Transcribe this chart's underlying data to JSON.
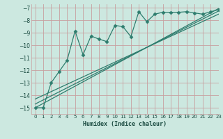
{
  "xlabel": "Humidex (Indice chaleur)",
  "bg_color": "#cce8e0",
  "line_color": "#2e7d6e",
  "grid_color": "#c8a0a0",
  "xlim": [
    -0.5,
    23
  ],
  "ylim": [
    -15.5,
    -6.7
  ],
  "xticks": [
    0,
    1,
    2,
    3,
    4,
    5,
    6,
    7,
    8,
    9,
    10,
    11,
    12,
    13,
    14,
    15,
    16,
    17,
    18,
    19,
    20,
    21,
    22,
    23
  ],
  "yticks": [
    -15,
    -14,
    -13,
    -12,
    -11,
    -10,
    -9,
    -8,
    -7
  ],
  "data_x": [
    0,
    1,
    2,
    3,
    4,
    5,
    6,
    7,
    8,
    9,
    10,
    11,
    12,
    13,
    14,
    15,
    16,
    17,
    18,
    19,
    20,
    21,
    22,
    23
  ],
  "data_y": [
    -15.0,
    -15.0,
    -13.0,
    -12.1,
    -11.2,
    -8.85,
    -10.75,
    -9.25,
    -9.5,
    -9.7,
    -8.4,
    -8.5,
    -9.3,
    -7.3,
    -8.1,
    -7.5,
    -7.35,
    -7.35,
    -7.35,
    -7.3,
    -7.4,
    -7.5,
    -7.3,
    -7.15
  ],
  "line1_x": [
    0,
    23
  ],
  "line1_y": [
    -15.0,
    -7.05
  ],
  "line2_x": [
    0,
    23
  ],
  "line2_y": [
    -14.7,
    -7.25
  ],
  "line3_x": [
    0,
    23
  ],
  "line3_y": [
    -14.3,
    -7.5
  ]
}
